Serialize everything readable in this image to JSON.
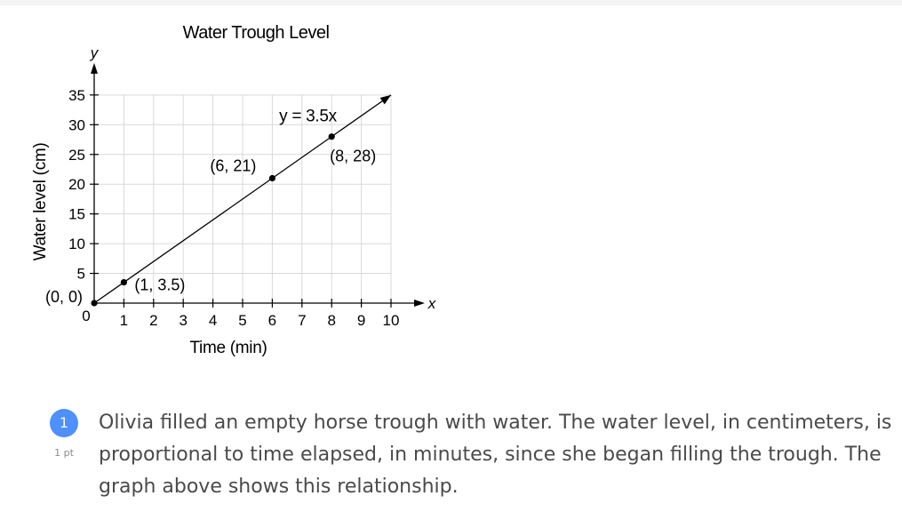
{
  "chart_data": {
    "type": "line",
    "title": "Water Trough Level",
    "xlabel": "Time (min)",
    "ylabel": "Water level (cm)",
    "x_axis_letter": "x",
    "y_axis_letter": "y",
    "xlim": [
      0,
      10
    ],
    "ylim": [
      0,
      35
    ],
    "xticks": [
      1,
      2,
      3,
      4,
      5,
      6,
      7,
      8,
      9,
      10
    ],
    "yticks": [
      5,
      10,
      15,
      20,
      25,
      30,
      35
    ],
    "origin_tick_label": "0",
    "grid": true,
    "equation_label": "y = 3.5x",
    "series": [
      {
        "slope": 3.5,
        "x": [
          0,
          10
        ],
        "y": [
          0,
          35
        ]
      }
    ],
    "points": [
      {
        "x": 0,
        "y": 0,
        "label": "(0, 0)"
      },
      {
        "x": 1,
        "y": 3.5,
        "label": "(1, 3.5)"
      },
      {
        "x": 6,
        "y": 21,
        "label": "(6, 21)"
      },
      {
        "x": 8,
        "y": 28,
        "label": "(8, 28)"
      }
    ],
    "colors": {
      "line": "#000000",
      "grid": "#d9d9d9",
      "axis": "#000000"
    }
  },
  "question": {
    "number": "1",
    "points": "1 pt",
    "lines": [
      "Olivia filled an empty horse trough with water. The water level, in centimeters, is",
      "proportional to time elapsed, in minutes, since she began filling the trough. The",
      "graph above shows this relationship."
    ],
    "badge_color": "#4d90fe"
  }
}
